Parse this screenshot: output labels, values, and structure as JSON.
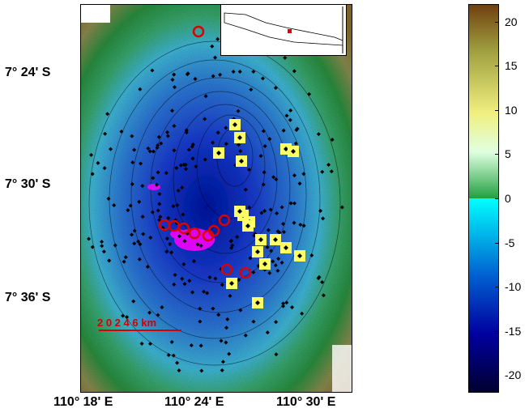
{
  "map": {
    "lat_labels": [
      "7° 24' S",
      "7° 30' S",
      "7° 36' S"
    ],
    "lon_labels": [
      "110° 18' E",
      "110° 24' E",
      "110° 30' E"
    ],
    "scale_label": "2  0   2    4   6 km"
  },
  "colorbar": {
    "ticks": [
      20,
      15,
      10,
      5,
      0,
      -5,
      -10,
      -15,
      -20
    ],
    "tick_labels": [
      "20",
      "15",
      "10",
      "5",
      "0",
      "-5",
      "-10",
      "-15",
      "-20"
    ],
    "min": -22,
    "max": 22,
    "colors_negative": [
      "#00ffff",
      "#0060d0",
      "#0000a0",
      "#000030"
    ],
    "colors_positive": [
      "#20a040",
      "#e0ffe0",
      "#f0f080",
      "#a0a040",
      "#704010"
    ]
  },
  "markers": {
    "black_diamond_color": "#000000",
    "yellow_box_color": "#ffff66",
    "red_circle_color": "#dd0000",
    "magenta_color": "#ff00ff"
  }
}
